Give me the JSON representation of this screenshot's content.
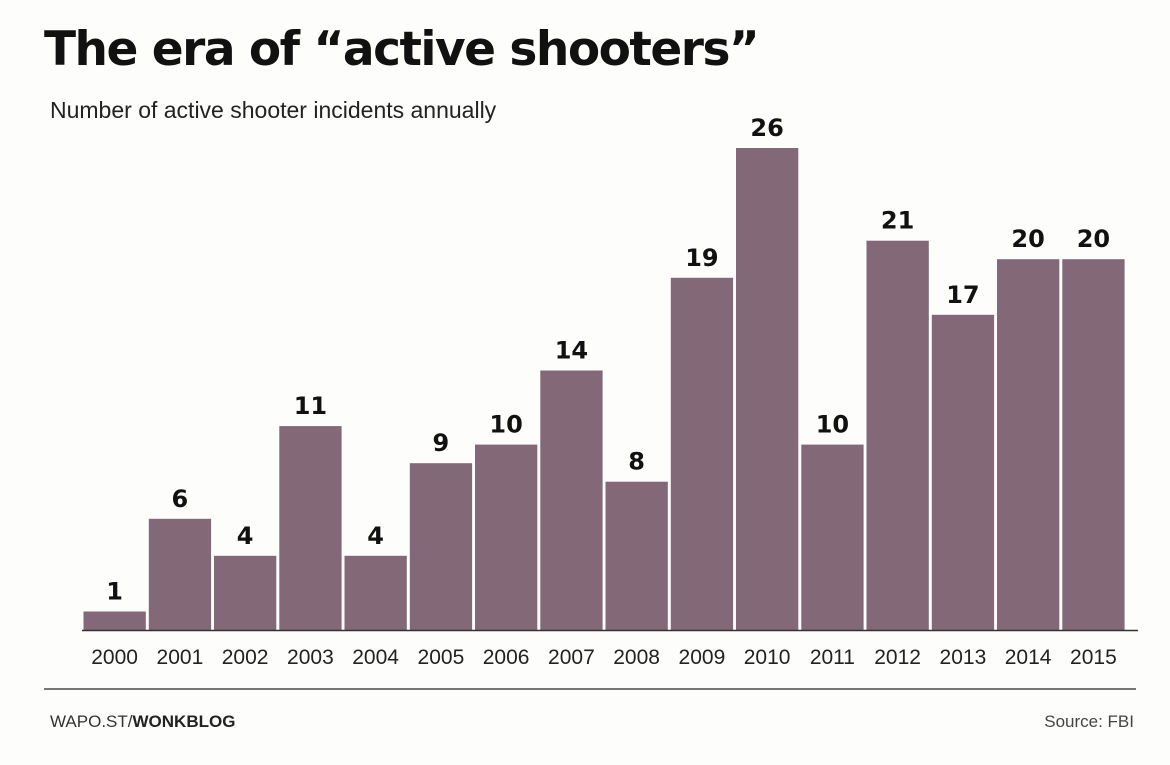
{
  "title": "The era of “active shooters”",
  "subtitle": "Number of active shooter incidents annually",
  "footer": {
    "site": "WAPO.ST/",
    "section": "WONKBLOG",
    "source": "Source: FBI"
  },
  "colors": {
    "bar": "#836877",
    "baseline": "#333333",
    "rule": "#777777"
  },
  "chart_data": {
    "type": "bar",
    "title": "The era of “active shooters”",
    "subtitle": "Number of active shooter incidents annually",
    "xlabel": "",
    "ylabel": "",
    "categories": [
      "2000",
      "2001",
      "2002",
      "2003",
      "2004",
      "2005",
      "2006",
      "2007",
      "2008",
      "2009",
      "2010",
      "2011",
      "2012",
      "2013",
      "2014",
      "2015"
    ],
    "values": [
      1,
      6,
      4,
      11,
      4,
      9,
      10,
      14,
      8,
      19,
      26,
      10,
      21,
      17,
      20,
      20
    ],
    "ylim": [
      0,
      26
    ],
    "grid": false,
    "data_labels": true
  }
}
